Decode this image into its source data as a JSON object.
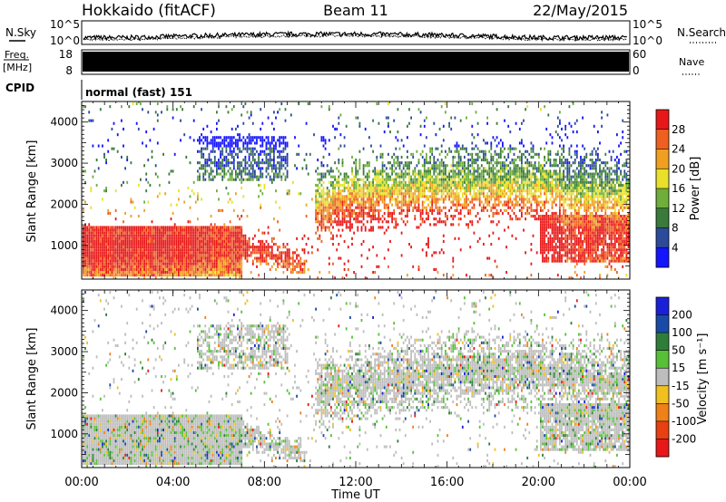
{
  "header": {
    "title_left": "Hokkaido (fitACF)",
    "title_center": "Beam 11",
    "title_right": "22/May/2015"
  },
  "noise_panel": {
    "left_label": "N.Sky",
    "right_label": "N.Search",
    "ticks_left": [
      "10^5",
      "10^0"
    ],
    "ticks_right": [
      "10^5",
      "10^0"
    ]
  },
  "freq_panel": {
    "left_label_top": "Freq.",
    "left_label_bottom": "[MHz]",
    "right_label": "Nave",
    "ticks_left": [
      "18",
      "8"
    ],
    "ticks_right": [
      "60",
      "0"
    ]
  },
  "cpid_panel": {
    "label": "CPID",
    "text": "normal (fast) 151"
  },
  "chart_data": [
    {
      "type": "heatmap",
      "title": "",
      "xlabel": "",
      "ylabel": "Slant Range [km]",
      "xlim": [
        "00:00",
        "24:00"
      ],
      "ylim": [
        180,
        4500
      ],
      "yticks": [
        1000,
        2000,
        3000,
        4000
      ],
      "colorbar": {
        "label": "Power [dB]",
        "ticks": [
          4,
          8,
          12,
          16,
          20,
          24,
          28
        ],
        "colors": [
          "#1414ff",
          "#2c4a9a",
          "#3a7a3a",
          "#6fae3a",
          "#e8e02a",
          "#f0a020",
          "#ee6020",
          "#e81818"
        ]
      }
    },
    {
      "type": "heatmap",
      "title": "",
      "xlabel": "Time UT",
      "ylabel": "Slant Range [km]",
      "xlim": [
        "00:00",
        "24:00"
      ],
      "ylim": [
        180,
        4500
      ],
      "yticks": [
        1000,
        2000,
        3000,
        4000
      ],
      "xticks": [
        "00:00",
        "04:00",
        "08:00",
        "12:00",
        "16:00",
        "20:00",
        "00:00"
      ],
      "colorbar": {
        "label": "Velocity [m s⁻¹]",
        "ticks": [
          200,
          100,
          50,
          15,
          -15,
          -50,
          -100,
          -200
        ],
        "colors": [
          "#1a20d8",
          "#1a4aa8",
          "#2e7e3a",
          "#58c038",
          "#bdbdbd",
          "#f0c020",
          "#f08018",
          "#e84010",
          "#e81818"
        ]
      }
    }
  ]
}
